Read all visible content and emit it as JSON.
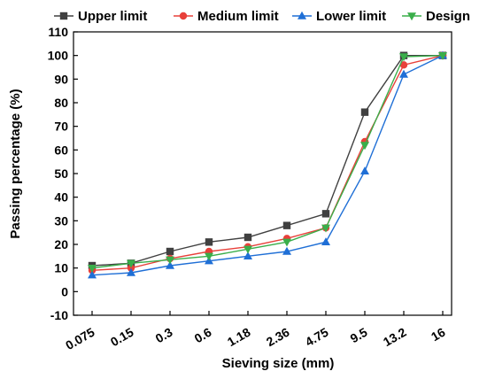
{
  "chart_data": {
    "type": "line",
    "title": "",
    "xlabel": "Sieving size (mm)",
    "ylabel": "Passing percentage (%)",
    "categories": [
      "0.075",
      "0.15",
      "0.3",
      "0.6",
      "1.18",
      "2.36",
      "4.75",
      "9.5",
      "13.2",
      "16"
    ],
    "ylim": [
      -10,
      110
    ],
    "yticks": [
      -10,
      0,
      10,
      20,
      30,
      40,
      50,
      60,
      70,
      80,
      90,
      100,
      110
    ],
    "legend_position": "top",
    "grid": false,
    "series": [
      {
        "name": "Upper limit",
        "color": "#404040",
        "marker": "square",
        "values": [
          11,
          12,
          17,
          21,
          23,
          28,
          33,
          76,
          100,
          100
        ]
      },
      {
        "name": "Medium limit",
        "color": "#e8403a",
        "marker": "circle",
        "values": [
          9,
          10,
          14,
          17,
          19,
          22.5,
          27,
          63.5,
          96,
          100
        ]
      },
      {
        "name": "Lower limit",
        "color": "#1f6fd6",
        "marker": "triangle-up",
        "values": [
          7,
          8,
          11,
          13,
          15,
          17,
          21,
          51,
          92,
          100
        ]
      },
      {
        "name": "Design",
        "color": "#3aae4a",
        "marker": "triangle-down",
        "values": [
          10,
          12,
          13.5,
          15,
          18,
          21,
          27,
          62,
          99.5,
          100
        ]
      }
    ]
  }
}
